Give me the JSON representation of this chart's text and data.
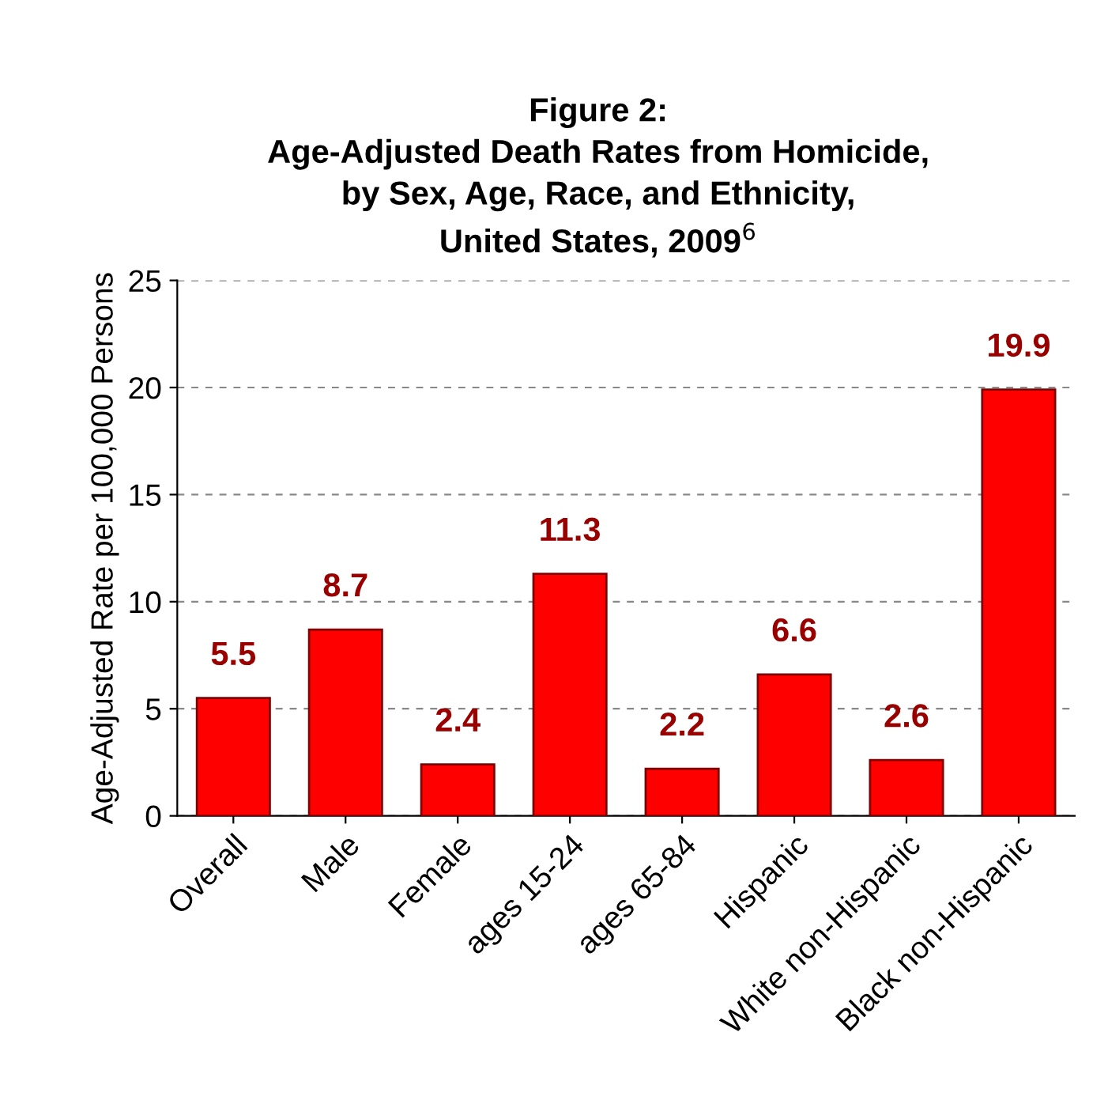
{
  "chart_data": {
    "type": "bar",
    "title": "Figure 2:\nAge-Adjusted Death Rates from Homicide,\nby Sex, Age, Race, and Ethnicity,\nUnited States, 2009$^{6}$",
    "ylabel": "Age-Adjusted Rate per 100,000 Persons",
    "categories": [
      "Overall",
      "Male",
      "Female",
      "ages 15-24",
      "ages 65-84",
      "Hispanic",
      "White non-Hispanic",
      "Black non-Hispanic"
    ],
    "values": [
      5.5,
      8.7,
      2.4,
      11.3,
      2.2,
      6.6,
      2.6,
      19.9
    ],
    "color": "#ff0000",
    "data_labels": true,
    "ylim": [
      0,
      25
    ],
    "yticks": [
      0,
      5,
      10,
      15,
      20,
      25
    ],
    "grid": "y"
  }
}
